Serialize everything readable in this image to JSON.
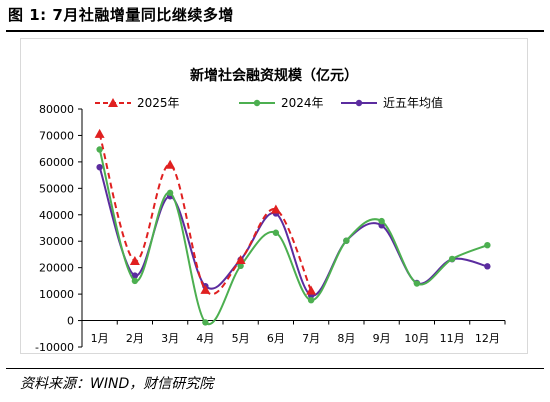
{
  "figure": {
    "title": "图 1:  7月社融增量同比继续多增",
    "source": "资料来源：WIND，财信研究院"
  },
  "chart_data": {
    "type": "line",
    "smooth": true,
    "title": "新增社会融资规模（亿元）",
    "xlabel": "",
    "ylabel": "",
    "categories": [
      "1月",
      "2月",
      "3月",
      "4月",
      "5月",
      "6月",
      "7月",
      "8月",
      "9月",
      "10月",
      "11月",
      "12月"
    ],
    "ylim": [
      -10000,
      80000
    ],
    "yticks": [
      -10000,
      0,
      10000,
      20000,
      30000,
      40000,
      50000,
      60000,
      70000,
      80000
    ],
    "grid": false,
    "legend_position": "top",
    "series": [
      {
        "name": "2025年",
        "color": "#e02020",
        "dash": true,
        "marker": "triangle",
        "values": [
          70600,
          22500,
          58900,
          11600,
          22900,
          42000,
          11300,
          null,
          null,
          null,
          null,
          null
        ]
      },
      {
        "name": "2024年",
        "color": "#4caf50",
        "dash": false,
        "marker": "circle",
        "values": [
          64700,
          15000,
          48300,
          -700,
          20700,
          33200,
          7700,
          30200,
          37600,
          14000,
          23300,
          28500
        ]
      },
      {
        "name": "近五年均值",
        "color": "#5b2c9f",
        "dash": false,
        "marker": "circle",
        "values": [
          58000,
          17000,
          47000,
          13000,
          23000,
          40500,
          9500,
          30200,
          36000,
          14200,
          23200,
          20500
        ]
      }
    ]
  }
}
